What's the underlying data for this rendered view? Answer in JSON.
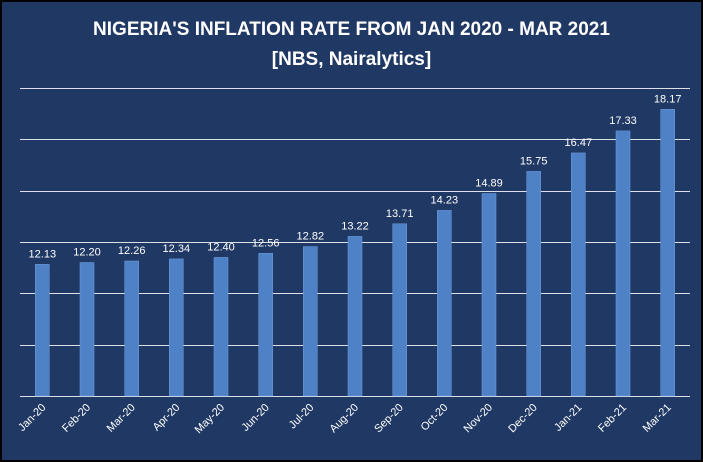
{
  "chart_data": {
    "type": "bar",
    "title": "NIGERIA'S INFLATION RATE FROM JAN 2020 - MAR 2021",
    "subtitle": "[NBS, Nairalytics]",
    "categories": [
      "Jan-20",
      "Feb-20",
      "Mar-20",
      "Apr-20",
      "May-20",
      "Jun-20",
      "Jul-20",
      "Aug-20",
      "Sep-20",
      "Oct-20",
      "Nov-20",
      "Dec-20",
      "Jan-21",
      "Feb-21",
      "Mar-21"
    ],
    "values": [
      12.13,
      12.2,
      12.26,
      12.34,
      12.4,
      12.56,
      12.82,
      13.22,
      13.71,
      14.23,
      14.89,
      15.75,
      16.47,
      17.33,
      18.17
    ],
    "value_labels": [
      "12.13",
      "12.20",
      "12.26",
      "12.34",
      "12.40",
      "12.56",
      "12.82",
      "13.22",
      "13.71",
      "14.23",
      "14.89",
      "15.75",
      "16.47",
      "17.33",
      "18.17"
    ],
    "ylim": [
      7,
      19
    ],
    "ytick_step": 2,
    "grid": true,
    "colors": {
      "background": "#203864",
      "bar": "#4f81c7",
      "bar_edge": "#6f9fe0",
      "gridline": "#ffffff",
      "text": "#ffffff"
    }
  }
}
